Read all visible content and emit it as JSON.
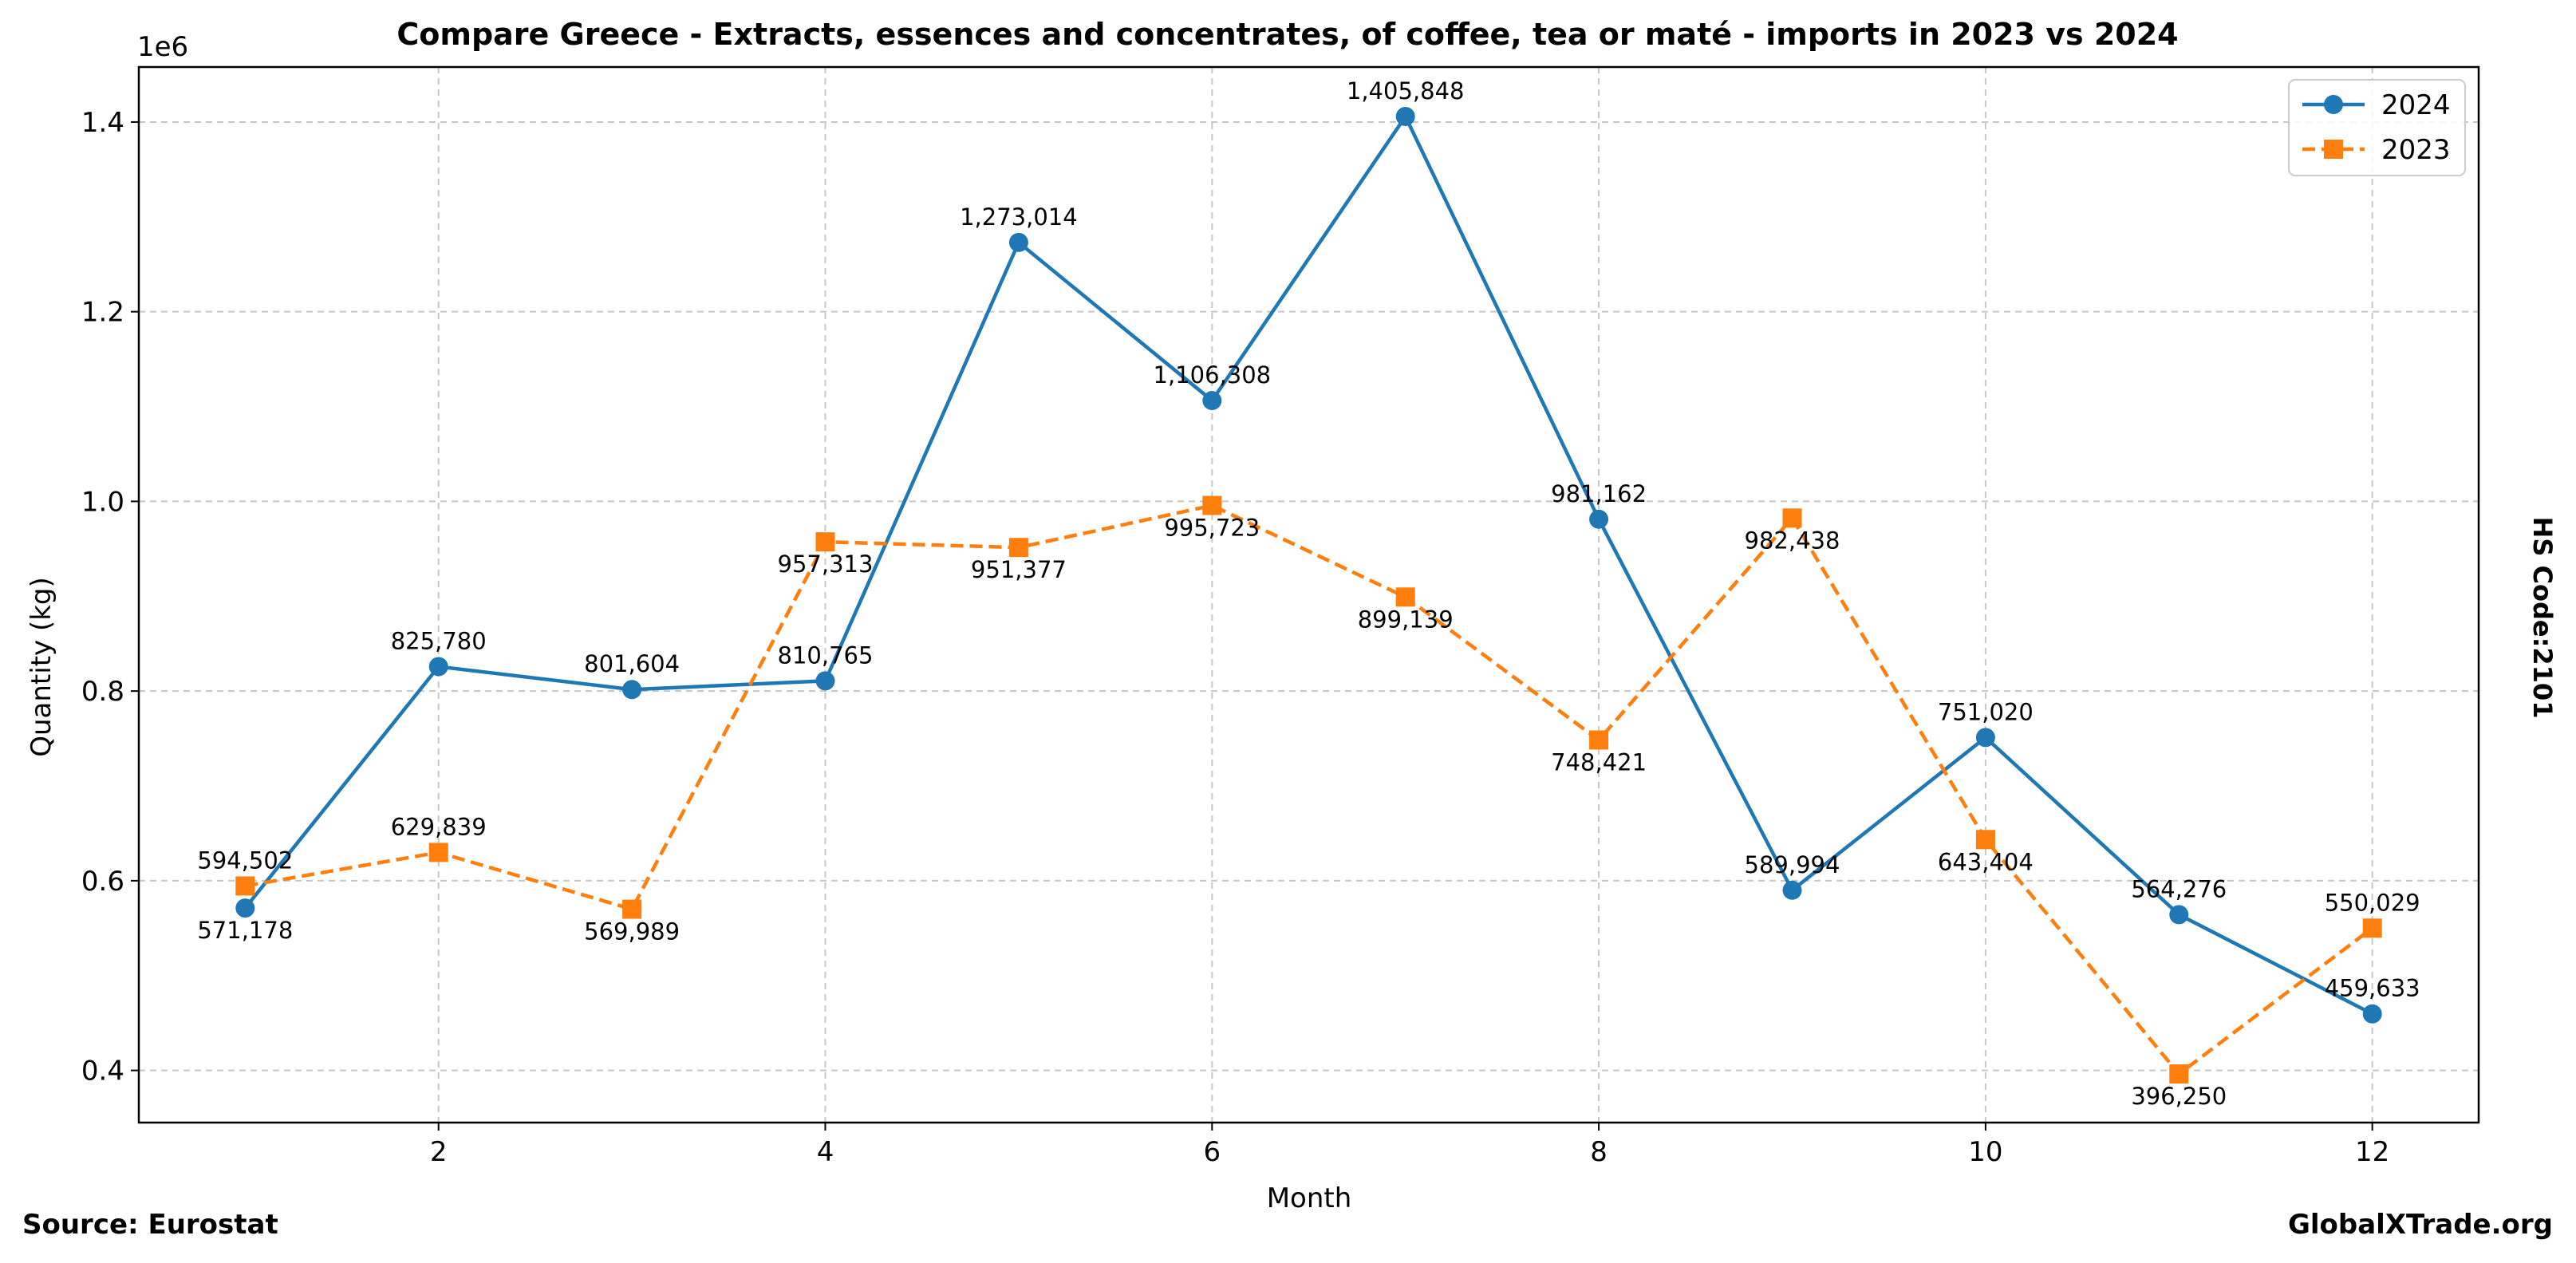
{
  "chart_data": {
    "type": "line",
    "title": "Compare Greece - Extracts, essences and concentrates, of coffee, tea or maté - imports in 2023 vs 2024",
    "xlabel": "Month",
    "ylabel": "Quantity (kg)",
    "y_offset_label": "1e6",
    "x": [
      1,
      2,
      3,
      4,
      5,
      6,
      7,
      8,
      9,
      10,
      11,
      12
    ],
    "xlim": [
      0.45,
      12.55
    ],
    "ylim": [
      0.345,
      1.458
    ],
    "xticks": [
      2,
      4,
      6,
      8,
      10,
      12
    ],
    "yticks": [
      0.4,
      0.6,
      0.8,
      1.0,
      1.2,
      1.4
    ],
    "ytick_labels": [
      "0.4",
      "0.6",
      "0.8",
      "1.0",
      "1.2",
      "1.4"
    ],
    "grid": true,
    "legend_position": "top-right",
    "series": [
      {
        "name": "2024",
        "color": "#1f77b4",
        "marker": "circle",
        "line_style": "solid",
        "values": [
          571178,
          825780,
          801604,
          810765,
          1273014,
          1106308,
          1405848,
          981162,
          589994,
          751020,
          564276,
          459633
        ],
        "labels": [
          "571,178",
          "825,780",
          "801,604",
          "810,765",
          "1,273,014",
          "1,106,308",
          "1,405,848",
          "981,162",
          "589,994",
          "751,020",
          "564,276",
          "459,633"
        ]
      },
      {
        "name": "2023",
        "color": "#ff7f0e",
        "marker": "square",
        "line_style": "dashed",
        "values": [
          594502,
          629839,
          569989,
          957313,
          951377,
          995723,
          899139,
          748421,
          982438,
          643404,
          396250,
          550029
        ],
        "labels": [
          "594,502",
          "629,839",
          "569,989",
          "957,313",
          "951,377",
          "995,723",
          "899,139",
          "748,421",
          "982,438",
          "643,404",
          "396,250",
          "550,029"
        ]
      }
    ],
    "side_label": "HS Code:2101",
    "source": "Source: Eurostat",
    "watermark": "GlobalXTrade.org"
  }
}
